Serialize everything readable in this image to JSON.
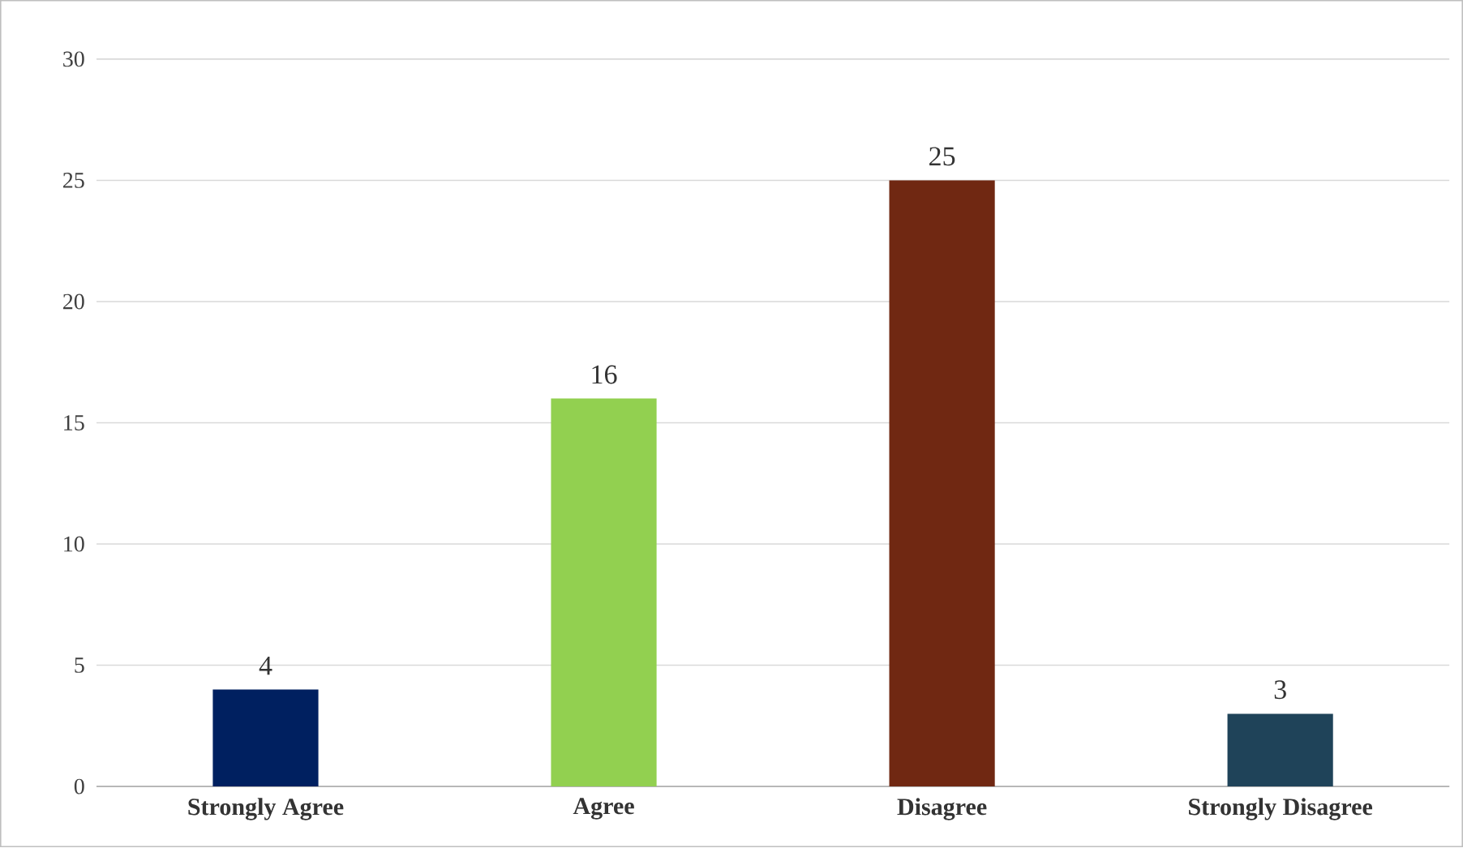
{
  "chart_data": {
    "type": "bar",
    "categories": [
      "Strongly Agree",
      "Agree",
      "Disagree",
      "Strongly Disagree"
    ],
    "values": [
      4,
      16,
      25,
      3
    ],
    "colors": [
      "#002060",
      "#92d050",
      "#702812",
      "#1f4359"
    ],
    "ylim": [
      0,
      30
    ],
    "yticks": [
      0,
      5,
      10,
      15,
      20,
      25,
      30
    ],
    "grid": "y",
    "data_labels": true
  }
}
